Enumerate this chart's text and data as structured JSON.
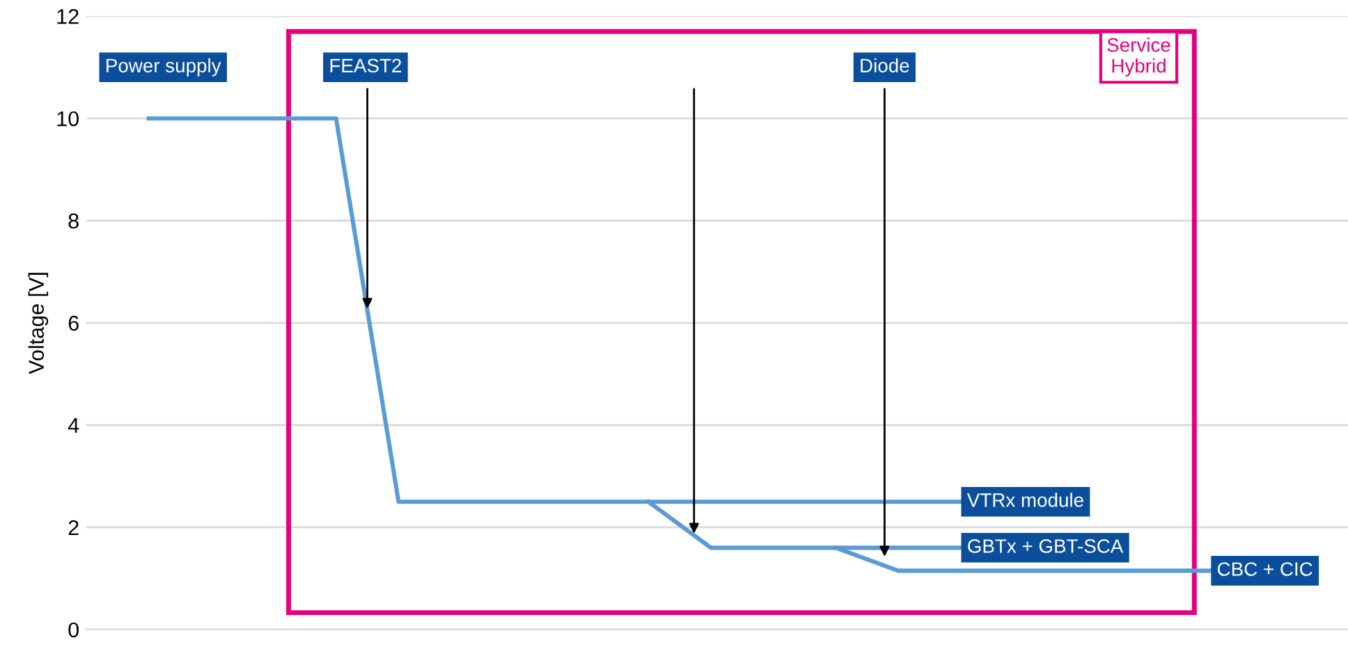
{
  "chart_data": {
    "type": "line",
    "ylabel": "Voltage [V]",
    "categories": [
      null,
      null,
      null,
      null,
      null,
      null,
      null,
      null,
      null,
      null,
      null,
      null,
      null,
      null,
      null,
      null,
      null,
      null
    ],
    "series": [
      {
        "name": "VTRx module",
        "color": "#5b9bd5",
        "values": [
          10,
          10,
          10,
          10,
          2.5,
          2.5,
          2.5,
          2.5,
          2.5,
          2.5,
          2.5,
          2.5,
          2.5,
          2.5,
          null,
          null,
          null,
          null
        ]
      },
      {
        "name": "GBTx + GBT-SCA",
        "color": "#5b9bd5",
        "values": [
          null,
          null,
          null,
          null,
          null,
          null,
          null,
          null,
          2.5,
          1.6,
          1.6,
          1.6,
          1.6,
          1.6,
          null,
          null,
          null,
          null
        ]
      },
      {
        "name": "CBC + CIC",
        "color": "#5b9bd5",
        "values": [
          null,
          null,
          null,
          null,
          null,
          null,
          null,
          null,
          null,
          null,
          null,
          1.6,
          1.15,
          1.15,
          1.15,
          1.15,
          1.15,
          1.15
        ]
      }
    ],
    "annotations": [
      "Power supply",
      "FEAST2",
      "Diode",
      "Service Hybrid"
    ],
    "ylim": [
      0,
      12
    ],
    "yticks": [
      0,
      2,
      4,
      6,
      8,
      10,
      12
    ],
    "grid": "y",
    "legend": false,
    "tick_labels": "y",
    "marker": "none",
    "line_style": "solid"
  }
}
